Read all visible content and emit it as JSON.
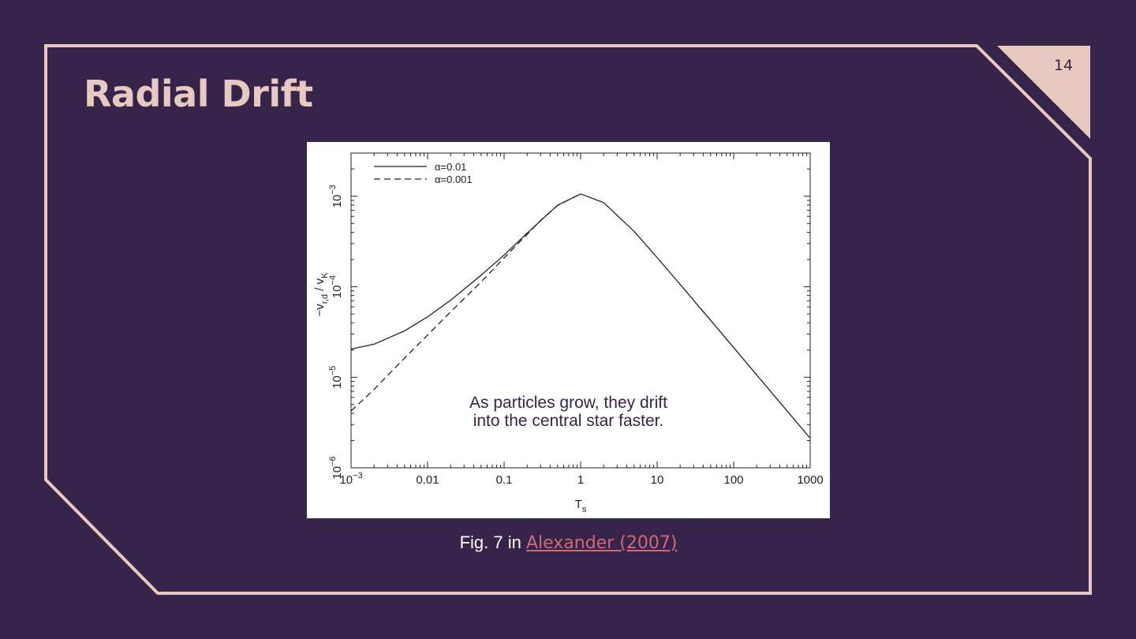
{
  "slide": {
    "title": "Radial Drift",
    "page_number": "14",
    "annotation_lines": [
      "As particles grow, they drift",
      "into the central star faster."
    ],
    "caption_prefix": "Fig. 7 in ",
    "caption_link": "Alexander (2007)",
    "colors": {
      "background": "#36244a",
      "accent": "#e8c9bf",
      "link": "#d06a78"
    }
  },
  "chart_data": {
    "type": "line",
    "xscale": "log",
    "yscale": "log",
    "xlim": [
      0.001,
      1000
    ],
    "ylim": [
      1e-06,
      0.003
    ],
    "xlabel_main": "T",
    "xlabel_sub": "s",
    "ylabel_parts": [
      "−v",
      "r,d",
      " / v",
      "K"
    ],
    "xticks": [
      {
        "value": 0.001,
        "label": "10",
        "exp": "−3"
      },
      {
        "value": 0.01,
        "label": "0.01"
      },
      {
        "value": 0.1,
        "label": "0.1"
      },
      {
        "value": 1,
        "label": "1"
      },
      {
        "value": 10,
        "label": "10"
      },
      {
        "value": 100,
        "label": "100"
      },
      {
        "value": 1000,
        "label": "1000"
      }
    ],
    "yticks": [
      {
        "value": 1e-06,
        "label": "10",
        "exp": "−6"
      },
      {
        "value": 1e-05,
        "label": "10",
        "exp": "−5"
      },
      {
        "value": 0.0001,
        "label": "10",
        "exp": "−4"
      },
      {
        "value": 0.001,
        "label": "10",
        "exp": "−3"
      }
    ],
    "legend_position": "top-left",
    "series": [
      {
        "name": "α=0.01",
        "style": "solid",
        "x": [
          0.001,
          0.002,
          0.005,
          0.01,
          0.02,
          0.05,
          0.1,
          0.2,
          0.5,
          1,
          2,
          5,
          10,
          20,
          50,
          100,
          200,
          500,
          1000
        ],
        "y": [
          2.05e-05,
          2.32e-05,
          3.26e-05,
          4.66e-05,
          7.1e-05,
          0.000134,
          0.000224,
          0.000391,
          0.000795,
          0.00106,
          0.00085,
          0.000409,
          0.00021,
          0.000106,
          4.25e-05,
          2.13e-05,
          1.06e-05,
          4.25e-06,
          2.12e-06
        ]
      },
      {
        "name": "α=0.001",
        "style": "dashed",
        "x": [
          0.001,
          0.002,
          0.005,
          0.01,
          0.02,
          0.05,
          0.1,
          0.2,
          0.3,
          0.5,
          1
        ],
        "y": [
          4.25e-06,
          7.35e-06,
          1.63e-05,
          2.93e-05,
          5.28e-05,
          0.000113,
          0.000208,
          0.00038,
          0.00054,
          0.00079,
          0.00106
        ]
      }
    ]
  }
}
